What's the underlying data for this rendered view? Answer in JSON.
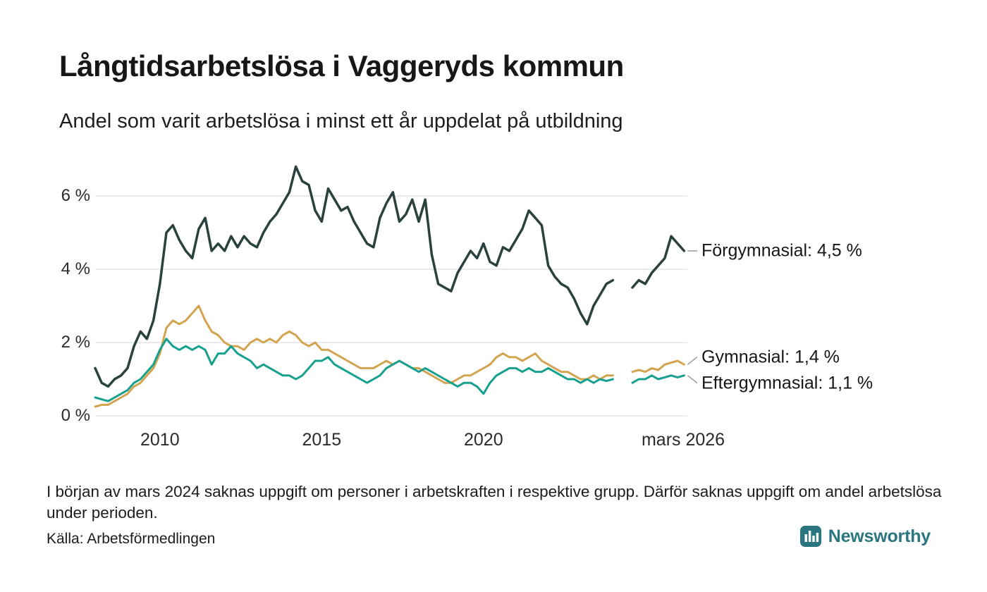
{
  "header": {
    "title": "Långtidsarbetslösa i Vaggeryds kommun",
    "subtitle": "Andel som varit arbetslösa i minst ett år uppdelat på utbildning"
  },
  "chart_data": {
    "type": "line",
    "title": "Långtidsarbetslösa i Vaggeryds kommun",
    "subtitle": "Andel som varit arbetslösa i minst ett år uppdelat på utbildning",
    "xlabel": "",
    "ylabel": "",
    "legend": "inline-end-labels",
    "grid": "horizontal",
    "grid_color": "#e4e4e4",
    "connector_color": "#9a9a9a",
    "xlim": [
      2008.0,
      2026.3
    ],
    "ylim": [
      0,
      7
    ],
    "yticks": [
      {
        "value": 0,
        "label": "0 %"
      },
      {
        "value": 2,
        "label": "2 %"
      },
      {
        "value": 4,
        "label": "4 %"
      },
      {
        "value": 6,
        "label": "6 %"
      }
    ],
    "xticks": [
      {
        "value": 2010,
        "label": "2010"
      },
      {
        "value": 2015,
        "label": "2015"
      },
      {
        "value": 2020,
        "label": "2020"
      },
      {
        "value": 2026.17,
        "label": "mars 2026"
      }
    ],
    "x": [
      2008,
      2008.2,
      2008.4,
      2008.6,
      2008.8,
      2009,
      2009.2,
      2009.4,
      2009.6,
      2009.8,
      2010,
      2010.2,
      2010.4,
      2010.6,
      2010.8,
      2011,
      2011.2,
      2011.4,
      2011.6,
      2011.8,
      2012,
      2012.2,
      2012.4,
      2012.6,
      2012.8,
      2013,
      2013.2,
      2013.4,
      2013.6,
      2013.8,
      2014,
      2014.2,
      2014.4,
      2014.6,
      2014.8,
      2015,
      2015.2,
      2015.4,
      2015.6,
      2015.8,
      2016,
      2016.2,
      2016.4,
      2016.6,
      2016.8,
      2017,
      2017.2,
      2017.4,
      2017.6,
      2017.8,
      2018,
      2018.2,
      2018.4,
      2018.6,
      2018.8,
      2019,
      2019.2,
      2019.4,
      2019.6,
      2019.8,
      2020,
      2020.2,
      2020.4,
      2020.6,
      2020.8,
      2021,
      2021.2,
      2021.4,
      2021.6,
      2021.8,
      2022,
      2022.2,
      2022.4,
      2022.6,
      2022.8,
      2023,
      2023.2,
      2023.4,
      2023.6,
      2023.8,
      2024,
      2024.2,
      2024.4,
      2024.6,
      2024.8,
      2025,
      2025.2,
      2025.4,
      2025.6,
      2025.8,
      2026,
      2026.2
    ],
    "series": [
      {
        "name": "Förgymnasial",
        "slug": "forgymnasial",
        "color": "#2a423e",
        "end_value": 4.5,
        "end_label": "Förgymnasial: 4,5 %",
        "values": [
          1.3,
          0.9,
          0.8,
          1.0,
          1.1,
          1.3,
          1.9,
          2.3,
          2.1,
          2.6,
          3.6,
          5.0,
          5.2,
          4.8,
          4.5,
          4.3,
          5.1,
          5.4,
          4.5,
          4.7,
          4.5,
          4.9,
          4.6,
          4.9,
          4.7,
          4.6,
          5.0,
          5.3,
          5.5,
          5.8,
          6.1,
          6.8,
          6.4,
          6.3,
          5.6,
          5.3,
          6.2,
          5.9,
          5.6,
          5.7,
          5.3,
          5.0,
          4.7,
          4.6,
          5.4,
          5.8,
          6.1,
          5.3,
          5.5,
          5.9,
          5.3,
          5.9,
          4.4,
          3.6,
          3.5,
          3.4,
          3.9,
          4.2,
          4.5,
          4.3,
          4.7,
          4.2,
          4.1,
          4.6,
          4.5,
          4.8,
          5.1,
          5.6,
          5.4,
          5.2,
          4.1,
          3.8,
          3.6,
          3.5,
          3.2,
          2.8,
          2.5,
          3.0,
          3.3,
          3.6,
          3.7,
          null,
          null,
          3.5,
          3.7,
          3.6,
          3.9,
          4.1,
          4.3,
          4.9,
          4.7,
          4.5
        ]
      },
      {
        "name": "Gymnasial",
        "slug": "gymnasial",
        "color": "#d3a44f",
        "end_value": 1.4,
        "end_label": "Gymnasial: 1,4 %",
        "values": [
          0.25,
          0.3,
          0.3,
          0.4,
          0.5,
          0.6,
          0.8,
          0.9,
          1.1,
          1.3,
          1.7,
          2.4,
          2.6,
          2.5,
          2.6,
          2.8,
          3.0,
          2.6,
          2.3,
          2.2,
          2.0,
          1.9,
          1.9,
          1.8,
          2.0,
          2.1,
          2.0,
          2.1,
          2.0,
          2.2,
          2.3,
          2.2,
          2.0,
          1.9,
          2.0,
          1.8,
          1.8,
          1.7,
          1.6,
          1.5,
          1.4,
          1.3,
          1.3,
          1.3,
          1.4,
          1.5,
          1.4,
          1.5,
          1.4,
          1.3,
          1.3,
          1.2,
          1.1,
          1.0,
          0.9,
          0.9,
          1.0,
          1.1,
          1.1,
          1.2,
          1.3,
          1.4,
          1.6,
          1.7,
          1.6,
          1.6,
          1.5,
          1.6,
          1.7,
          1.5,
          1.4,
          1.3,
          1.2,
          1.2,
          1.1,
          1.0,
          1.0,
          1.1,
          1.0,
          1.1,
          1.1,
          null,
          null,
          1.2,
          1.25,
          1.2,
          1.3,
          1.25,
          1.4,
          1.45,
          1.5,
          1.4
        ]
      },
      {
        "name": "Eftergymnasial",
        "slug": "eftergymnasial",
        "color": "#17a08d",
        "end_value": 1.1,
        "end_label": "Eftergymnasial: 1,1 %",
        "values": [
          0.5,
          0.45,
          0.4,
          0.5,
          0.6,
          0.7,
          0.9,
          1.0,
          1.2,
          1.4,
          1.8,
          2.1,
          1.9,
          1.8,
          1.9,
          1.8,
          1.9,
          1.8,
          1.4,
          1.7,
          1.7,
          1.9,
          1.7,
          1.6,
          1.5,
          1.3,
          1.4,
          1.3,
          1.2,
          1.1,
          1.1,
          1.0,
          1.1,
          1.3,
          1.5,
          1.5,
          1.6,
          1.4,
          1.3,
          1.2,
          1.1,
          1.0,
          0.9,
          1.0,
          1.1,
          1.3,
          1.4,
          1.5,
          1.4,
          1.3,
          1.2,
          1.3,
          1.2,
          1.1,
          1.0,
          0.9,
          0.8,
          0.9,
          0.9,
          0.8,
          0.6,
          0.9,
          1.1,
          1.2,
          1.3,
          1.3,
          1.2,
          1.3,
          1.2,
          1.2,
          1.3,
          1.2,
          1.1,
          1.0,
          1.0,
          0.9,
          1.0,
          0.9,
          1.0,
          0.95,
          1.0,
          null,
          null,
          0.9,
          1.0,
          1.0,
          1.1,
          1.0,
          1.05,
          1.1,
          1.05,
          1.1
        ]
      }
    ]
  },
  "footer": {
    "note": "I början av mars 2024 saknas uppgift om personer i arbetskraften i respektive grupp. Därför saknas uppgift om andel arbetslösa under perioden.",
    "source": "Källa: Arbetsförmedlingen",
    "brand": "Newsworthy",
    "brand_color": "#2a7680"
  }
}
